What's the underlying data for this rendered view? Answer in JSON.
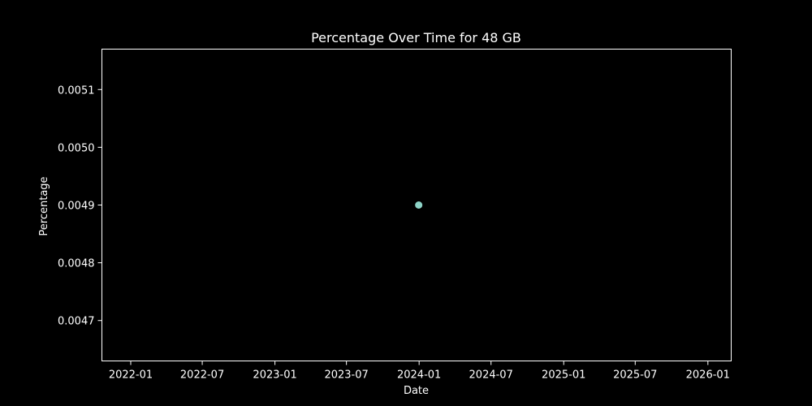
{
  "chart_data": {
    "type": "scatter",
    "title": "Percentage Over Time for 48 GB",
    "xlabel": "Date",
    "ylabel": "Percentage",
    "x_ticks": [
      "2022-01",
      "2022-07",
      "2023-01",
      "2023-07",
      "2024-01",
      "2024-07",
      "2025-01",
      "2025-07",
      "2026-01"
    ],
    "y_ticks": [
      "0.0047",
      "0.0048",
      "0.0049",
      "0.0050",
      "0.0051"
    ],
    "xlim": [
      "2021-10-20",
      "2026-03-01"
    ],
    "ylim": [
      0.00463,
      0.00517
    ],
    "grid": false,
    "series": [
      {
        "color": "#8dd3c7",
        "points": [
          {
            "x": "2023-12-31",
            "y": 0.0049
          }
        ]
      }
    ]
  }
}
